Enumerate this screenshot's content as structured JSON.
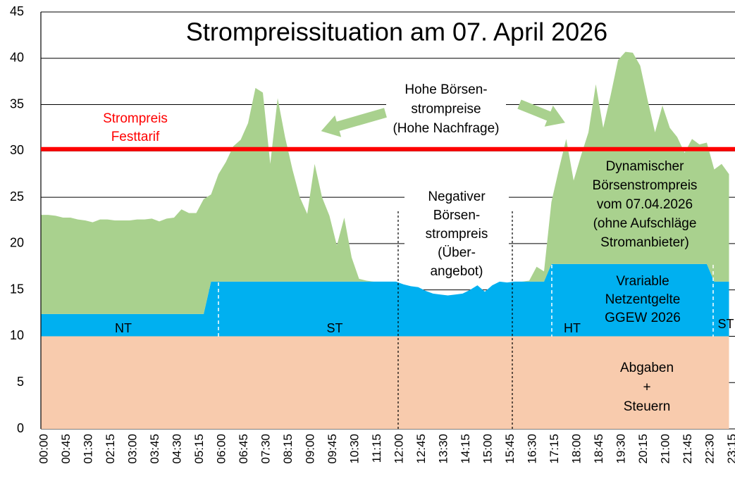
{
  "chart_data": {
    "type": "stacked_area",
    "title": "Strompreissituation am 07. April 2026",
    "categories": [
      "00:00",
      null,
      null,
      "00:45",
      null,
      null,
      "01:30",
      null,
      null,
      "02:15",
      null,
      null,
      "03:00",
      null,
      null,
      "03:45",
      null,
      null,
      "04:30",
      null,
      null,
      "05:15",
      null,
      null,
      "06:00",
      null,
      null,
      "06:45",
      null,
      null,
      "07:30",
      null,
      null,
      "08:15",
      null,
      null,
      "09:00",
      null,
      null,
      "09:45",
      null,
      null,
      "10:30",
      null,
      null,
      "11:15",
      null,
      null,
      "12:00",
      null,
      null,
      "12:45",
      null,
      null,
      "13:30",
      null,
      null,
      "14:15",
      null,
      null,
      "15:00",
      null,
      null,
      "15:45",
      null,
      null,
      "16:30",
      null,
      null,
      "17:15",
      null,
      null,
      "18:00",
      null,
      null,
      "18:45",
      null,
      null,
      "19:30",
      null,
      null,
      "20:15",
      null,
      null,
      "21:00",
      null,
      null,
      "21:45",
      null,
      null,
      "22:30",
      null,
      null,
      "23:15"
    ],
    "series": [
      {
        "color": "#f8cbad",
        "values": [
          10,
          10,
          10,
          10,
          10,
          10,
          10,
          10,
          10,
          10,
          10,
          10,
          10,
          10,
          10,
          10,
          10,
          10,
          10,
          10,
          10,
          10,
          10,
          10,
          10,
          10,
          10,
          10,
          10,
          10,
          10,
          10,
          10,
          10,
          10,
          10,
          10,
          10,
          10,
          10,
          10,
          10,
          10,
          10,
          10,
          10,
          10,
          10,
          10,
          10,
          10,
          10,
          10,
          10,
          10,
          10,
          10,
          10,
          10,
          10,
          10,
          10,
          10,
          10,
          10,
          10,
          10,
          10,
          10,
          10,
          10,
          10,
          10,
          10,
          10,
          10,
          10,
          10,
          10,
          10,
          10,
          10,
          10,
          10,
          10,
          10,
          10,
          10,
          10,
          10,
          10,
          10,
          10,
          10
        ]
      },
      {
        "color": "#00b0f0",
        "values": [
          2.4,
          2.4,
          2.4,
          2.4,
          2.4,
          2.4,
          2.4,
          2.4,
          2.4,
          2.4,
          2.4,
          2.4,
          2.4,
          2.4,
          2.4,
          2.4,
          2.4,
          2.4,
          2.4,
          2.4,
          2.4,
          2.4,
          2.4,
          5.9,
          5.9,
          5.9,
          5.9,
          5.9,
          5.9,
          5.9,
          5.9,
          5.9,
          5.9,
          5.9,
          5.9,
          5.9,
          5.9,
          5.9,
          5.9,
          5.9,
          5.9,
          5.9,
          5.9,
          5.9,
          5.9,
          5.9,
          5.9,
          5.9,
          5.9,
          5.9,
          5.9,
          5.9,
          5.9,
          5.9,
          5.9,
          5.9,
          5.9,
          5.9,
          5.9,
          5.9,
          5.9,
          5.9,
          5.9,
          5.9,
          5.9,
          5.9,
          5.9,
          5.9,
          5.9,
          7.8,
          7.8,
          7.8,
          7.8,
          7.8,
          7.8,
          7.8,
          7.8,
          7.8,
          7.8,
          7.8,
          7.8,
          7.8,
          7.8,
          7.8,
          7.8,
          7.8,
          7.8,
          7.8,
          7.8,
          7.8,
          7.8,
          5.9,
          5.9,
          5.9
        ]
      },
      {
        "color": "#a9d18e",
        "values": [
          10.7,
          10.7,
          10.6,
          10.4,
          10.4,
          10.2,
          10.1,
          9.9,
          10.2,
          10.2,
          10.1,
          10.1,
          10.1,
          10.2,
          10.2,
          10.3,
          10.0,
          10.3,
          10.4,
          11.3,
          10.9,
          10.9,
          12.4,
          9.4,
          11.6,
          12.9,
          14.6,
          15.3,
          17.1,
          20.9,
          20.4,
          12.7,
          19.8,
          15.6,
          12.1,
          9.1,
          7.3,
          12.7,
          9.1,
          7.1,
          3.9,
          6.9,
          2.6,
          0.3,
          0.1,
          0.0,
          0.0,
          0.0,
          0.0,
          -0.3,
          -0.5,
          -0.6,
          -1.0,
          -1.3,
          -1.4,
          -1.5,
          -1.4,
          -1.3,
          -0.9,
          -0.4,
          -1.1,
          -0.4,
          0.0,
          -0.1,
          0.0,
          0.0,
          0.1,
          1.6,
          1.1,
          6.7,
          10.2,
          13.5,
          9.0,
          11.7,
          14.2,
          19.4,
          14.7,
          18.2,
          22.0,
          22.9,
          22.8,
          21.4,
          17.7,
          14.2,
          17.1,
          14.7,
          13.7,
          12.0,
          13.5,
          12.9,
          13.1,
          12.1,
          12.7,
          11.6
        ]
      }
    ],
    "ylim": [
      0,
      45
    ],
    "yticks": [
      0,
      5,
      10,
      15,
      20,
      25,
      30,
      35,
      40,
      45
    ],
    "grid": true,
    "reference_line": {
      "value": 30.2,
      "color": "#ff0000",
      "label": [
        "Strompreis",
        "Festtarif"
      ]
    },
    "segment_labels": [
      "NT",
      "ST",
      "HT",
      "ST"
    ],
    "annotations": {
      "high": [
        "Hohe Börsen-",
        "strompreise",
        "(Hohe Nachfrage)"
      ],
      "negative": [
        "Negativer",
        "Börsen-",
        "strompreis",
        "(Über-",
        "angebot)"
      ],
      "dynamic": [
        "Dynamischer",
        "Börsenstrompreis",
        "vom 07.04.2026",
        "(ohne Aufschläge",
        "Stromanbieter)"
      ],
      "grid_fees": [
        "Vrariable",
        "Netzentgelte",
        "GGEW 2026"
      ],
      "taxes": [
        "Abgaben",
        "+",
        "Steuern"
      ]
    }
  }
}
